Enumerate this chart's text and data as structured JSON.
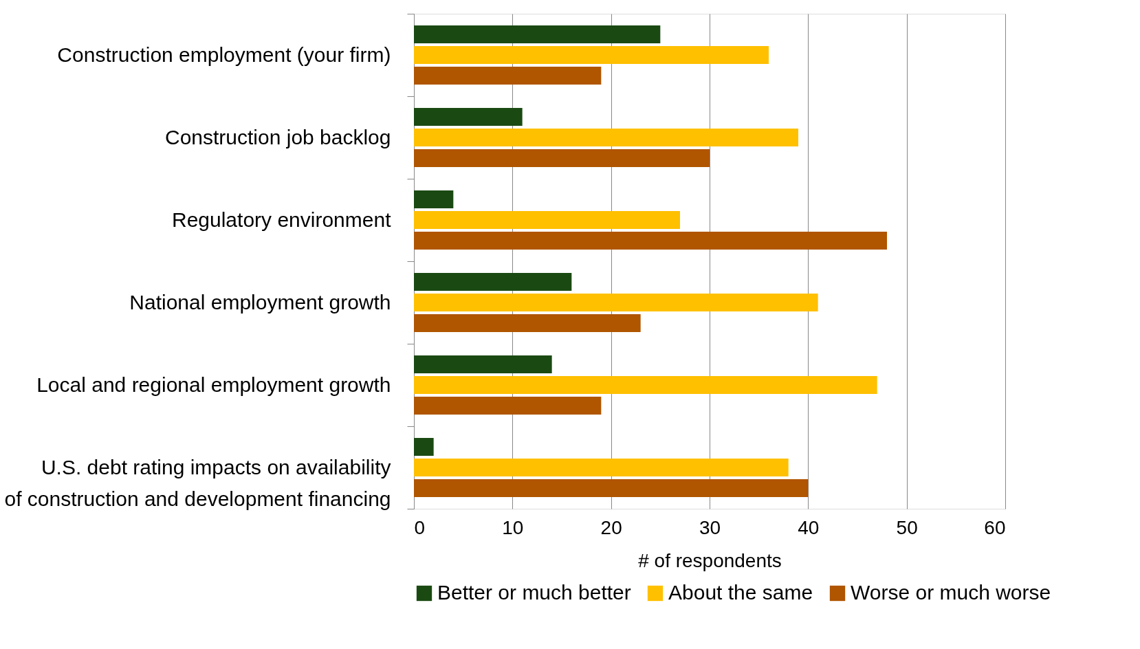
{
  "chart_data": {
    "type": "bar",
    "orientation": "horizontal",
    "xlabel": "# of respondents",
    "categories": [
      "Construction employment (your firm)",
      "Construction job backlog",
      "Regulatory environment",
      "National employment growth",
      "Local and regional employment growth",
      "U.S. debt rating impacts on availability of construction and development financing"
    ],
    "series": [
      {
        "name": "Better or much better",
        "color": "#1a4a12",
        "values": [
          25,
          11,
          4,
          16,
          14,
          2
        ]
      },
      {
        "name": "About the same",
        "color": "#ffc000",
        "values": [
          36,
          39,
          27,
          41,
          47,
          38
        ]
      },
      {
        "name": "Worse or much worse",
        "color": "#b05500",
        "values": [
          19,
          30,
          48,
          23,
          19,
          40
        ]
      }
    ],
    "xlim": [
      0,
      60
    ],
    "xticks": [
      0,
      10,
      20,
      30,
      40,
      50,
      60
    ],
    "grid": "x",
    "legend": "bottom"
  }
}
